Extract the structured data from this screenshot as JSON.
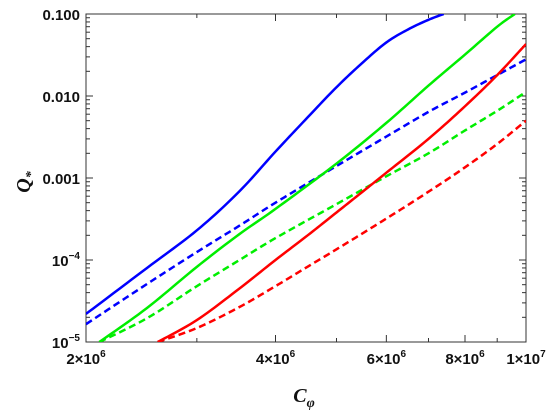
{
  "chart_data": {
    "type": "line",
    "title": "",
    "xlabel": "C",
    "xlabel_sub": "φ",
    "ylabel": "Q",
    "ylabel_sub": "*",
    "xscale": "log",
    "yscale": "log",
    "xlim": [
      2000000,
      10000000
    ],
    "ylim": [
      1e-05,
      0.1
    ],
    "grid": false,
    "legend": "none",
    "x_ticks": [
      {
        "value": 2000000,
        "mant": "2×10",
        "exp": "6"
      },
      {
        "value": 4000000,
        "mant": "4×10",
        "exp": "6"
      },
      {
        "value": 6000000,
        "mant": "6×10",
        "exp": "6"
      },
      {
        "value": 8000000,
        "mant": "8×10",
        "exp": "6"
      },
      {
        "value": 10000000,
        "mant": "1×10",
        "exp": "7"
      }
    ],
    "y_ticks": [
      {
        "value": 0.1,
        "mant": "0.100",
        "exp": ""
      },
      {
        "value": 0.01,
        "mant": "0.010",
        "exp": ""
      },
      {
        "value": 0.001,
        "mant": "0.001",
        "exp": ""
      },
      {
        "value": 0.0001,
        "mant": "10",
        "exp": "−4"
      },
      {
        "value": 1e-05,
        "mant": "10",
        "exp": "−5"
      }
    ],
    "series": [
      {
        "color": "#0000ff",
        "dash": "solid",
        "x": [
          2000000,
          2500000,
          3000000,
          3500000,
          4000000,
          4500000,
          5000000,
          5500000,
          6000000,
          6500000,
          7000000,
          7400000
        ],
        "y": [
          2.2e-05,
          8e-05,
          0.00023,
          0.00068,
          0.0021,
          0.0055,
          0.0128,
          0.0255,
          0.045,
          0.065,
          0.085,
          0.1
        ]
      },
      {
        "color": "#0000ff",
        "dash": "dashed",
        "x": [
          2000000,
          2500000,
          3000000,
          3500000,
          4000000,
          5000000,
          6000000,
          7000000,
          8000000,
          9000000,
          10000000
        ],
        "y": [
          1.65e-05,
          5.1e-05,
          0.000125,
          0.00026,
          0.0005,
          0.0014,
          0.0032,
          0.0064,
          0.011,
          0.018,
          0.028
        ]
      },
      {
        "color": "#00ee00",
        "dash": "solid",
        "x": [
          2100000,
          2500000,
          3000000,
          3500000,
          4000000,
          5000000,
          6000000,
          7000000,
          8000000,
          9000000,
          9600000
        ],
        "y": [
          1e-05,
          2.6e-05,
          8.25e-05,
          0.000205,
          0.00042,
          0.0015,
          0.0047,
          0.0134,
          0.032,
          0.07,
          0.1
        ]
      },
      {
        "color": "#00ee00",
        "dash": "dashed",
        "x": [
          2100000,
          2500000,
          3000000,
          3500000,
          4000000,
          5000000,
          6000000,
          7000000,
          8000000,
          9000000,
          10000000
        ],
        "y": [
          1e-05,
          1.95e-05,
          4.8e-05,
          9.9e-05,
          0.000185,
          0.00048,
          0.00105,
          0.002,
          0.0038,
          0.0066,
          0.0112
        ]
      },
      {
        "color": "#ff0000",
        "dash": "solid",
        "x": [
          2600000,
          3000000,
          3500000,
          4000000,
          4500000,
          5000000,
          5500000,
          6000000,
          7000000,
          8000000,
          9000000,
          10000000
        ],
        "y": [
          1e-05,
          1.85e-05,
          4.45e-05,
          0.0001,
          0.0002,
          0.00038,
          0.00068,
          0.00116,
          0.003,
          0.0075,
          0.018,
          0.043
        ]
      },
      {
        "color": "#ff0000",
        "dash": "dashed",
        "x": [
          2600000,
          3000000,
          3500000,
          4000000,
          4500000,
          5000000,
          6000000,
          7000000,
          8000000,
          9000000,
          10000000
        ],
        "y": [
          1e-05,
          1.48e-05,
          2.65e-05,
          4.8e-05,
          8.3e-05,
          0.000135,
          0.00032,
          0.00068,
          0.00135,
          0.0026,
          0.005
        ]
      }
    ]
  }
}
